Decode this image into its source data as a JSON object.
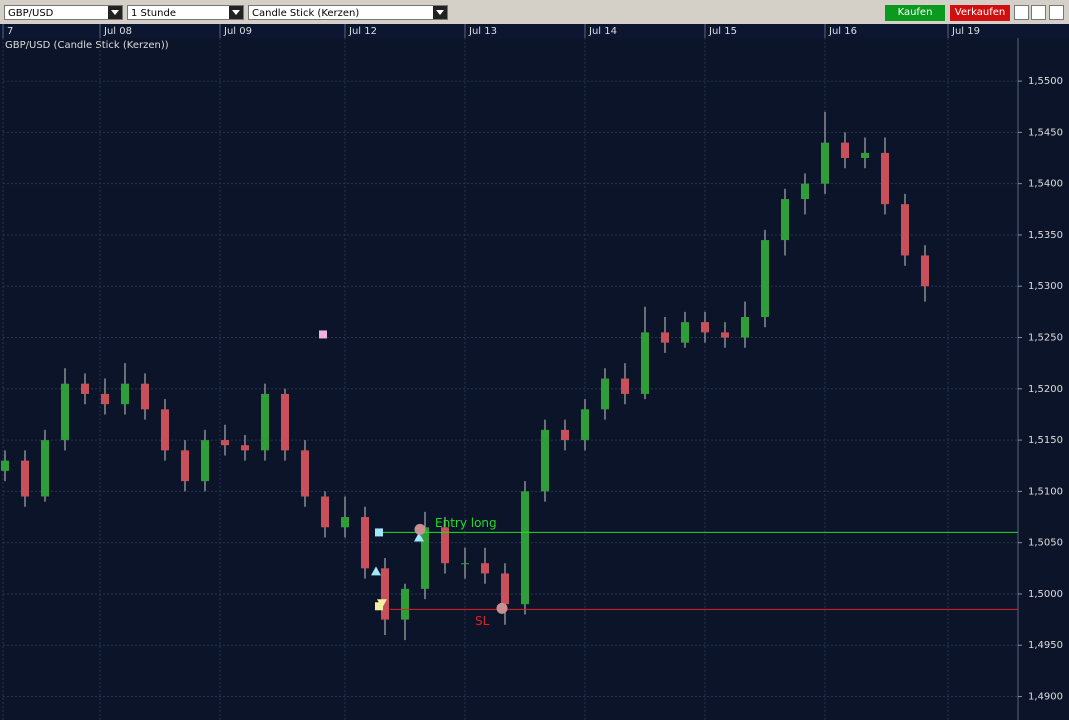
{
  "toolbar": {
    "symbol": "GBP/USD",
    "interval": "1 Stunde",
    "chart_style": "Candle Stick (Kerzen)",
    "buy": "Kaufen",
    "sell": "Verkaufen"
  },
  "chart_data": {
    "type": "candlestick",
    "title": "GBP/USD (Candle Stick (Kerzen))",
    "x": [
      0,
      1,
      2,
      3,
      4,
      5,
      6,
      7,
      8,
      9,
      10,
      11,
      12,
      13,
      14,
      15,
      16,
      17,
      18,
      19,
      20,
      21,
      22,
      23,
      24,
      25,
      26,
      27,
      28,
      29,
      30,
      31,
      32,
      33,
      34,
      35,
      36,
      37,
      38,
      39,
      40,
      41,
      42,
      43,
      44,
      45,
      46
    ],
    "open": [
      1.512,
      1.513,
      1.5095,
      1.515,
      1.5205,
      1.5195,
      1.5185,
      1.5205,
      1.518,
      1.514,
      1.511,
      1.515,
      1.5145,
      1.514,
      1.5195,
      1.514,
      1.5095,
      1.5065,
      1.5075,
      1.5025,
      1.4975,
      1.5005,
      1.5065,
      1.503,
      1.503,
      1.502,
      1.499,
      1.51,
      1.516,
      1.515,
      1.518,
      1.521,
      1.5195,
      1.5255,
      1.5245,
      1.5265,
      1.5255,
      1.525,
      1.527,
      1.5345,
      1.5385,
      1.54,
      1.544,
      1.5425,
      1.543,
      1.538,
      1.533
    ],
    "high": [
      1.514,
      1.514,
      1.516,
      1.522,
      1.5215,
      1.521,
      1.5225,
      1.5215,
      1.519,
      1.515,
      1.516,
      1.5165,
      1.5155,
      1.5205,
      1.52,
      1.515,
      1.51,
      1.5095,
      1.5085,
      1.5035,
      1.501,
      1.508,
      1.5075,
      1.5045,
      1.5045,
      1.503,
      1.511,
      1.517,
      1.517,
      1.519,
      1.522,
      1.5225,
      1.528,
      1.527,
      1.5275,
      1.5275,
      1.5265,
      1.5285,
      1.5355,
      1.5395,
      1.541,
      1.547,
      1.545,
      1.5445,
      1.5445,
      1.539,
      1.534
    ],
    "low": [
      1.511,
      1.5085,
      1.509,
      1.514,
      1.5185,
      1.5175,
      1.5175,
      1.517,
      1.513,
      1.51,
      1.51,
      1.5135,
      1.513,
      1.513,
      1.513,
      1.5085,
      1.5055,
      1.5055,
      1.5015,
      1.496,
      1.4955,
      1.4995,
      1.502,
      1.5015,
      1.501,
      1.497,
      1.498,
      1.509,
      1.514,
      1.514,
      1.517,
      1.5185,
      1.519,
      1.5235,
      1.524,
      1.5245,
      1.524,
      1.524,
      1.526,
      1.533,
      1.537,
      1.539,
      1.5415,
      1.5415,
      1.537,
      1.532,
      1.5285
    ],
    "close": [
      1.513,
      1.5095,
      1.515,
      1.5205,
      1.5195,
      1.5185,
      1.5205,
      1.518,
      1.514,
      1.511,
      1.515,
      1.5145,
      1.514,
      1.5195,
      1.514,
      1.5095,
      1.5065,
      1.5075,
      1.5025,
      1.4975,
      1.5005,
      1.5065,
      1.503,
      1.503,
      1.502,
      1.499,
      1.51,
      1.516,
      1.515,
      1.518,
      1.521,
      1.5195,
      1.5255,
      1.5245,
      1.5265,
      1.5255,
      1.525,
      1.527,
      1.5345,
      1.5385,
      1.54,
      1.544,
      1.5425,
      1.543,
      1.538,
      1.533,
      1.53
    ],
    "up_color": "#2f9e3a",
    "down_color": "#c8505a",
    "xlim": [
      -0.1,
      50.65
    ],
    "ylim": [
      1.4882,
      1.5542
    ],
    "xticks": [
      {
        "value": -0.1,
        "label": "7"
      },
      {
        "value": 4.75,
        "label": "Jul 08"
      },
      {
        "value": 10.75,
        "label": "Jul 09"
      },
      {
        "value": 17,
        "label": "Jul 12"
      },
      {
        "value": 23,
        "label": "Jul 13"
      },
      {
        "value": 29,
        "label": "Jul 14"
      },
      {
        "value": 35,
        "label": "Jul 15"
      },
      {
        "value": 41,
        "label": "Jul 16"
      },
      {
        "value": 47.15,
        "label": "Jul 19"
      }
    ],
    "yticks": [
      {
        "value": 1.49,
        "label": "1,4900"
      },
      {
        "value": 1.495,
        "label": "1,4950"
      },
      {
        "value": 1.5,
        "label": "1,5000"
      },
      {
        "value": 1.505,
        "label": "1,5050"
      },
      {
        "value": 1.51,
        "label": "1,5100"
      },
      {
        "value": 1.515,
        "label": "1,5150"
      },
      {
        "value": 1.52,
        "label": "1,5200"
      },
      {
        "value": 1.525,
        "label": "1,5250"
      },
      {
        "value": 1.53,
        "label": "1,5300"
      },
      {
        "value": 1.535,
        "label": "1,5350"
      },
      {
        "value": 1.54,
        "label": "1,5400"
      },
      {
        "value": 1.545,
        "label": "1,5450"
      },
      {
        "value": 1.55,
        "label": "1,5500"
      }
    ],
    "grid": true,
    "levels": [
      {
        "label": "Entry long",
        "value": 1.506,
        "x": 18.75,
        "color": "#22dd22"
      },
      {
        "label": "SL",
        "value": 1.4985,
        "x": 19.25,
        "color": "#dd2222"
      }
    ],
    "markers": [
      {
        "x": 15.9,
        "y": 1.5253,
        "shape": "square",
        "color": "#f0b0e0"
      },
      {
        "x": 18.7,
        "y": 1.506,
        "shape": "square",
        "color": "#a0e8f8"
      },
      {
        "x": 18.55,
        "y": 1.5022,
        "shape": "up",
        "color": "#a0e8f8"
      },
      {
        "x": 20.7,
        "y": 1.5055,
        "shape": "up",
        "color": "#a0e8f8"
      },
      {
        "x": 20.75,
        "y": 1.5063,
        "shape": "circle",
        "color": "#c89090"
      },
      {
        "x": 18.7,
        "y": 1.4988,
        "shape": "square",
        "color": "#f0f0a0"
      },
      {
        "x": 18.85,
        "y": 1.4991,
        "shape": "down",
        "color": "#f0f0a0"
      },
      {
        "x": 24.85,
        "y": 1.4986,
        "shape": "circle",
        "color": "#c89090"
      }
    ]
  }
}
